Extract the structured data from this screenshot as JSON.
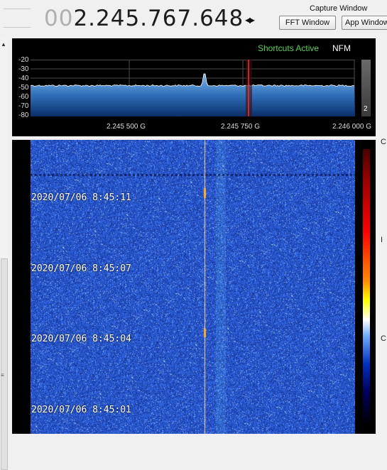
{
  "frequency": {
    "leading_zeros": "00",
    "value": "2.245.767.648",
    "arrows": "◂▸"
  },
  "capture": {
    "title": "Capture Window",
    "fft_button": "FFT Window",
    "app_button": "App Window"
  },
  "spectrum": {
    "shortcuts_status": "Shortcuts Active",
    "mode": "NFM",
    "gain_value": "2",
    "y_labels": [
      "-20",
      "-30",
      "-40",
      "-50",
      "-60",
      "-70",
      "-80"
    ],
    "x_labels": [
      "2.245 500 G",
      "2.245 750 G",
      "2.246 000 G"
    ],
    "colors": {
      "trace": "#ffffff",
      "fill_top": "#6fa8e0",
      "fill_bottom": "#0a3a7a",
      "marker": "#ff3030",
      "grid": "#555555"
    }
  },
  "waterfall": {
    "timestamps": [
      "2020/07/06 8:45:11",
      "2020/07/06 8:45:07",
      "2020/07/06 8:45:04",
      "2020/07/06 8:45:01"
    ],
    "colors": {
      "background": "#1c3fb4",
      "signal": "#ffd28a"
    }
  },
  "edge_labels": [
    "C",
    "I",
    "C"
  ]
}
